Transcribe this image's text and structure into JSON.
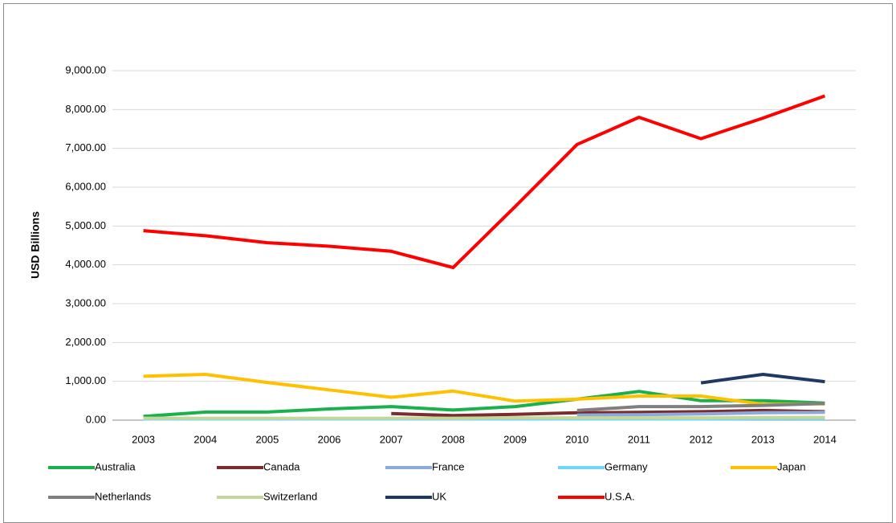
{
  "chart_data": {
    "type": "line",
    "y_label": "USD Billions",
    "categories": [
      "2003",
      "2004",
      "2005",
      "2006",
      "2007",
      "2008",
      "2009",
      "2010",
      "2011",
      "2012",
      "2013",
      "2014"
    ],
    "ylim": [
      0,
      9000
    ],
    "yticks": [
      {
        "value": 0,
        "label": "0.00"
      },
      {
        "value": 1000,
        "label": "1,000.00"
      },
      {
        "value": 2000,
        "label": "2,000.00"
      },
      {
        "value": 3000,
        "label": "3,000.00"
      },
      {
        "value": 4000,
        "label": "4,000.00"
      },
      {
        "value": 5000,
        "label": "5,000.00"
      },
      {
        "value": 6000,
        "label": "6,000.00"
      },
      {
        "value": 7000,
        "label": "7,000.00"
      },
      {
        "value": 8000,
        "label": "8,000.00"
      },
      {
        "value": 9000,
        "label": "9,000.00"
      }
    ],
    "grid": true,
    "legend": "bottom",
    "series": [
      {
        "name": "Australia",
        "color": "#1ab04c",
        "values": [
          100,
          210,
          210,
          290,
          350,
          260,
          350,
          540,
          740,
          500,
          500,
          440
        ]
      },
      {
        "name": "Canada",
        "color": "#7b2c2c",
        "values": [
          null,
          null,
          null,
          null,
          170,
          120,
          150,
          190,
          200,
          220,
          250,
          220
        ]
      },
      {
        "name": "France",
        "color": "#8eaadb",
        "values": [
          null,
          null,
          null,
          null,
          null,
          null,
          null,
          130,
          140,
          160,
          190,
          200
        ]
      },
      {
        "name": "Germany",
        "color": "#6fd6f7",
        "values": [
          30,
          30,
          30,
          30,
          30,
          30,
          30,
          30,
          30,
          30,
          40,
          40
        ]
      },
      {
        "name": "Japan",
        "color": "#ffc000",
        "values": [
          1130,
          1180,
          970,
          780,
          590,
          750,
          490,
          540,
          620,
          620,
          410,
          420
        ]
      },
      {
        "name": "Netherlands",
        "color": "#7f7f7f",
        "values": [
          null,
          null,
          null,
          null,
          null,
          null,
          null,
          250,
          350,
          350,
          380,
          430
        ]
      },
      {
        "name": "Switzerland",
        "color": "#c4d79b",
        "values": [
          50,
          50,
          50,
          50,
          50,
          50,
          60,
          60,
          60,
          60,
          70,
          70
        ]
      },
      {
        "name": "UK",
        "color": "#1f3864",
        "values": [
          null,
          null,
          null,
          null,
          null,
          null,
          null,
          null,
          null,
          960,
          1180,
          990
        ]
      },
      {
        "name": "U.S.A.",
        "color": "#ff0000",
        "values": [
          4880,
          4750,
          4570,
          4480,
          4350,
          3930,
          5500,
          7100,
          7800,
          7250,
          7780,
          8350
        ]
      }
    ]
  }
}
